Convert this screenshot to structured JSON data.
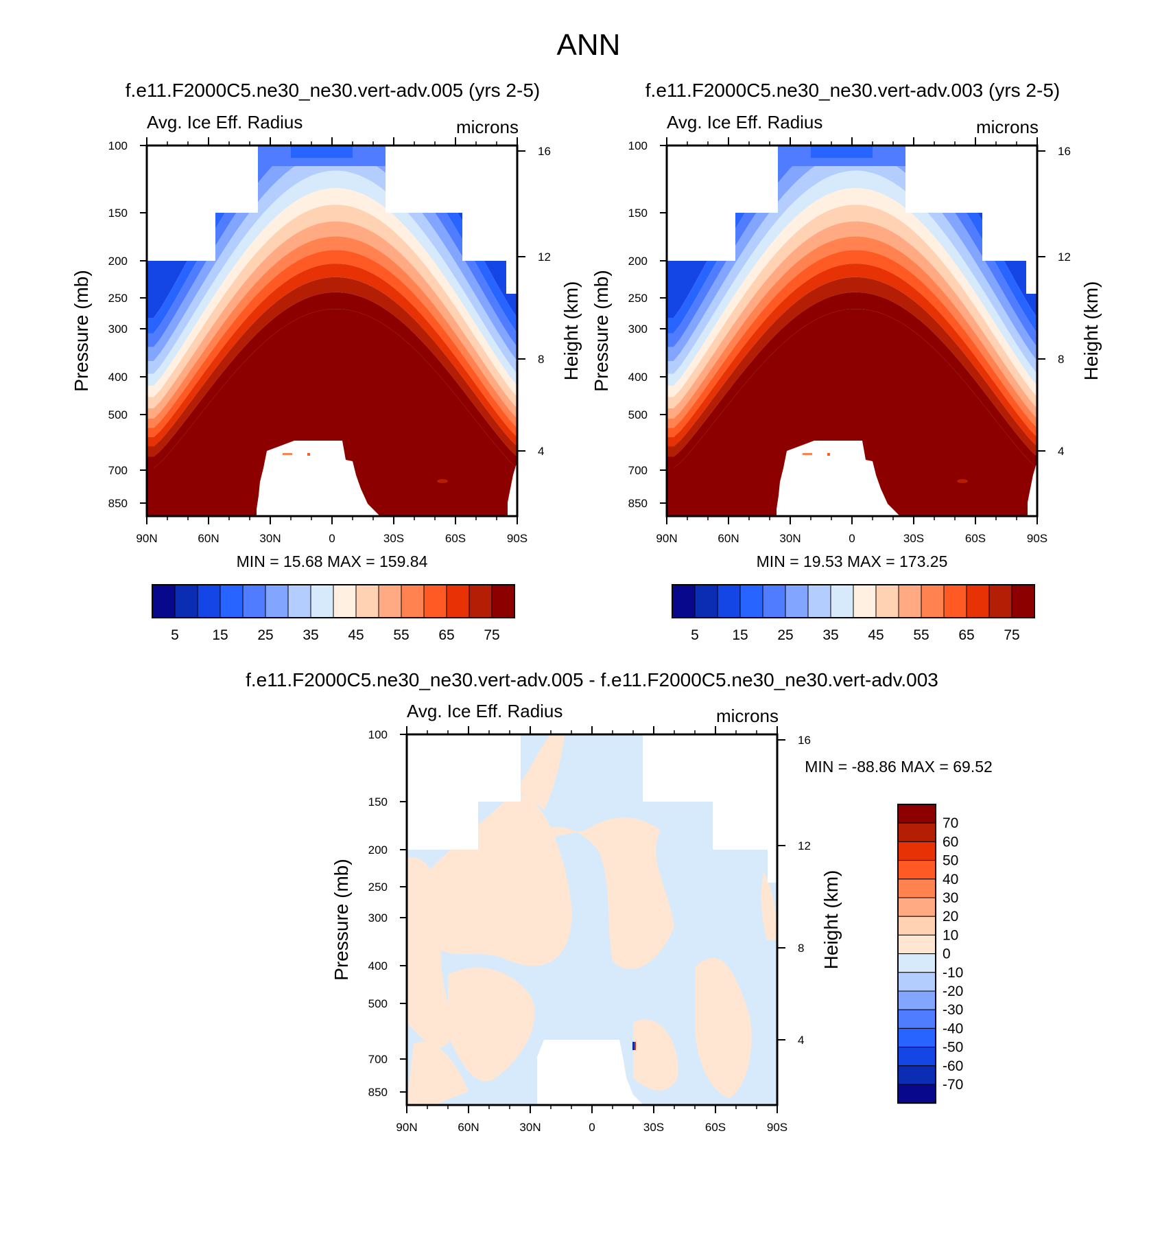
{
  "page_title": "ANN",
  "colors": {
    "panel_scale": [
      "#08088c",
      "#0a2db4",
      "#1446e6",
      "#2864ff",
      "#507dff",
      "#82a5ff",
      "#b4cdff",
      "#d7eafc",
      "#fff0e1",
      "#ffd2b4",
      "#ffaa82",
      "#ff8250",
      "#ff5a23",
      "#e63205",
      "#b41e05",
      "#8c0000"
    ],
    "diff_scale": [
      "#08088c",
      "#0a2db4",
      "#1446e6",
      "#2864ff",
      "#507dff",
      "#82a5ff",
      "#b4cdff",
      "#d7eafc",
      "#ffe6d2",
      "#ffd2b4",
      "#ffaa82",
      "#ff8250",
      "#ff5a23",
      "#e63205",
      "#b41e05",
      "#8c0000"
    ]
  },
  "chart_data": [
    {
      "type": "heatmap",
      "id": "left",
      "title": "f.e11.F2000C5.ne30_ne30.vert-adv.005 (yrs 2-5)",
      "subtitle_left": "Avg. Ice Eff. Radius",
      "subtitle_right": "microns",
      "ylabel": "Pressure (mb)",
      "ylabel_right": "Height (km)",
      "x_ticks": [
        "90N",
        "60N",
        "30N",
        "0",
        "30S",
        "60S",
        "90S"
      ],
      "y_ticks": [
        "100",
        "150",
        "200",
        "250",
        "300",
        "400",
        "500",
        "700",
        "850"
      ],
      "y_ticks_right": [
        "16",
        "12",
        "8",
        "4"
      ],
      "stats": "MIN =  15.68  MAX = 159.84",
      "colorbar_labels": [
        "5",
        "15",
        "25",
        "35",
        "45",
        "55",
        "65",
        "75"
      ]
    },
    {
      "type": "heatmap",
      "id": "right",
      "title": "f.e11.F2000C5.ne30_ne30.vert-adv.003 (yrs 2-5)",
      "subtitle_left": "Avg. Ice Eff. Radius",
      "subtitle_right": "microns",
      "ylabel": "Pressure (mb)",
      "ylabel_right": "Height (km)",
      "x_ticks": [
        "90N",
        "60N",
        "30N",
        "0",
        "30S",
        "60S",
        "90S"
      ],
      "y_ticks": [
        "100",
        "150",
        "200",
        "250",
        "300",
        "400",
        "500",
        "700",
        "850"
      ],
      "y_ticks_right": [
        "16",
        "12",
        "8",
        "4"
      ],
      "stats": "MIN =  19.53  MAX = 173.25",
      "colorbar_labels": [
        "5",
        "15",
        "25",
        "35",
        "45",
        "55",
        "65",
        "75"
      ]
    },
    {
      "type": "heatmap",
      "id": "diff",
      "title": "f.e11.F2000C5.ne30_ne30.vert-adv.005 - f.e11.F2000C5.ne30_ne30.vert-adv.003",
      "subtitle_left": "Avg. Ice Eff. Radius",
      "subtitle_right": "microns",
      "ylabel": "Pressure (mb)",
      "ylabel_right": "Height (km)",
      "x_ticks": [
        "90N",
        "60N",
        "30N",
        "0",
        "30S",
        "60S",
        "90S"
      ],
      "y_ticks": [
        "100",
        "150",
        "200",
        "250",
        "300",
        "400",
        "500",
        "700",
        "850"
      ],
      "y_ticks_right": [
        "16",
        "12",
        "8",
        "4"
      ],
      "stats": "MIN = -88.86  MAX =  69.52",
      "colorbar_labels": [
        "70",
        "60",
        "50",
        "40",
        "30",
        "20",
        "10",
        "0",
        "-10",
        "-20",
        "-30",
        "-40",
        "-50",
        "-60",
        "-70"
      ]
    }
  ]
}
